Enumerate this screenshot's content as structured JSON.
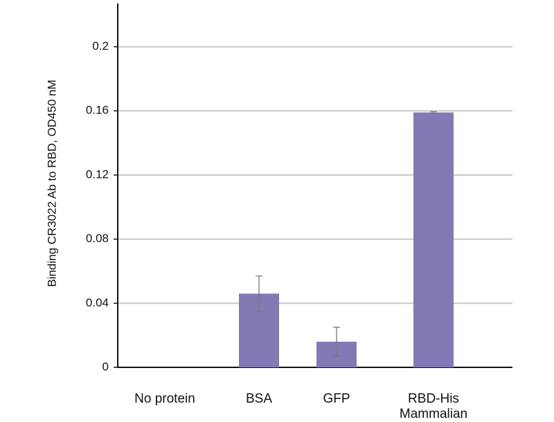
{
  "chart_data": {
    "type": "bar",
    "y_label": "Binding CR3022 Ab to RBD, OD450 nM",
    "categories": [
      "No protein",
      "BSA",
      "GFP",
      "RBD-His\nMammalian"
    ],
    "values": [
      0,
      0.046,
      0.016,
      0.159
    ],
    "errors": [
      0,
      0.011,
      0.009,
      0.0005
    ],
    "color": "#8479b5",
    "ylim": [
      0,
      0.227
    ],
    "yticks": [
      0,
      0.04,
      0.08,
      0.12,
      0.16,
      0.2
    ],
    "grid": true
  }
}
